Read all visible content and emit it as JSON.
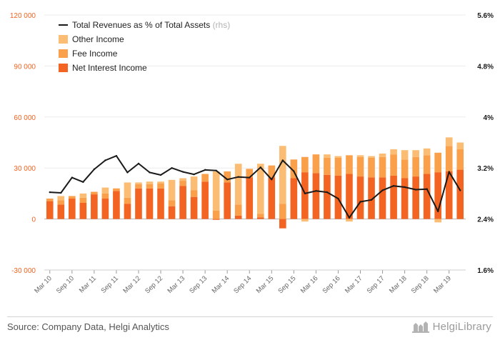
{
  "source": "Source: Company Data, Helgi Analytics",
  "brand": {
    "name": "HelgiLibrary",
    "logo_icon": "helgi-logo-icon"
  },
  "colors": {
    "other": "#fbbd74",
    "fee": "#fa9f4a",
    "net": "#f36321",
    "line": "#1a1a1a",
    "left_axis": "#f36321",
    "right_axis": "#1a1a1a",
    "grid": "#ececec",
    "zero": "#b5b5b5"
  },
  "chart_data": {
    "type": "bar",
    "stacked": true,
    "categories": [
      "Mar 10",
      "Jun 10",
      "Sep 10",
      "Dec 10",
      "Mar 11",
      "Jun 11",
      "Sep 11",
      "Dec 11",
      "Mar 12",
      "Jun 12",
      "Sep 12",
      "Dec 12",
      "Mar 13",
      "Jun 13",
      "Sep 13",
      "Dec 13",
      "Mar 14",
      "Jun 14",
      "Sep 14",
      "Dec 14",
      "Mar 15",
      "Jun 15",
      "Sep 15",
      "Dec 15",
      "Mar 16",
      "Jun 16",
      "Sep 16",
      "Dec 16",
      "Mar 17",
      "Jun 17",
      "Sep 17",
      "Dec 17",
      "Mar 18",
      "Jun 18",
      "Sep 18",
      "Dec 18",
      "Mar 19",
      "Jun 19"
    ],
    "x_tick_labels": [
      "Mar 10",
      "Sep 10",
      "Mar 11",
      "Sep 11",
      "Mar 12",
      "Sep 12",
      "Mar 13",
      "Sep 13",
      "Mar 14",
      "Sep 14",
      "Mar 15",
      "Sep 15",
      "Mar 16",
      "Sep 16",
      "Mar 17",
      "Sep 17",
      "Mar 18",
      "Sep 18",
      "Mar 19"
    ],
    "series": [
      {
        "name": "Net Interest Income",
        "axis": "left",
        "values": [
          10500,
          8500,
          12000,
          9500,
          14500,
          12000,
          16500,
          9000,
          18000,
          18000,
          18000,
          7500,
          19500,
          13000,
          22000,
          -500,
          21500,
          2000,
          24500,
          1000,
          24500,
          -5500,
          24000,
          27500,
          27000,
          26000,
          25500,
          26500,
          25000,
          24500,
          24500,
          25500,
          24000,
          25000,
          26500,
          27500,
          28000,
          29000
        ]
      },
      {
        "name": "Fee Income",
        "axis": "left",
        "values": [
          1500,
          2500,
          1500,
          3000,
          1500,
          3000,
          1500,
          3500,
          2500,
          2500,
          3000,
          3500,
          3000,
          4000,
          4500,
          5000,
          6500,
          6500,
          5000,
          2000,
          7000,
          9000,
          11000,
          9000,
          11000,
          10000,
          10500,
          11000,
          11500,
          11500,
          12000,
          12500,
          11000,
          11500,
          11000,
          11500,
          15000,
          12000
        ]
      },
      {
        "name": "Other Income",
        "axis": "left",
        "values": [
          0,
          2500,
          0,
          2500,
          0,
          3500,
          0,
          9000,
          1000,
          1500,
          1000,
          12000,
          1500,
          8000,
          0,
          23000,
          0,
          24000,
          0,
          29500,
          0,
          34000,
          0,
          -1500,
          0,
          2000,
          1000,
          -1500,
          1000,
          1000,
          2000,
          3000,
          5500,
          4000,
          4000,
          -2000,
          5000,
          4000
        ]
      },
      {
        "name": "Total Revenues as % of Total Assets",
        "suffix": "(rhs)",
        "axis": "right",
        "type": "line",
        "values": [
          2.82,
          2.81,
          3.05,
          2.98,
          3.18,
          3.32,
          3.39,
          3.13,
          3.27,
          3.13,
          3.09,
          3.2,
          3.14,
          3.1,
          3.17,
          3.16,
          3.02,
          3.06,
          3.05,
          3.21,
          3.02,
          3.32,
          3.15,
          2.8,
          2.84,
          2.82,
          2.72,
          2.42,
          2.67,
          2.7,
          2.85,
          2.92,
          2.9,
          2.86,
          2.87,
          2.52,
          3.14,
          2.85
        ]
      }
    ],
    "y_left": {
      "min": -30000,
      "max": 120000,
      "ticks": [
        -30000,
        0,
        30000,
        60000,
        90000,
        120000
      ],
      "tick_labels": [
        "-30 000",
        "0",
        "30 000",
        "60 000",
        "90 000",
        "120 000"
      ]
    },
    "y_right": {
      "min": 1.6,
      "max": 5.6,
      "ticks": [
        1.6,
        2.4,
        3.2,
        4.0,
        4.8,
        5.6
      ],
      "tick_labels": [
        "1.6%",
        "2.4%",
        "3.2%",
        "4%",
        "4.8%",
        "5.6%"
      ]
    },
    "legend": {
      "position": "top-left"
    }
  }
}
